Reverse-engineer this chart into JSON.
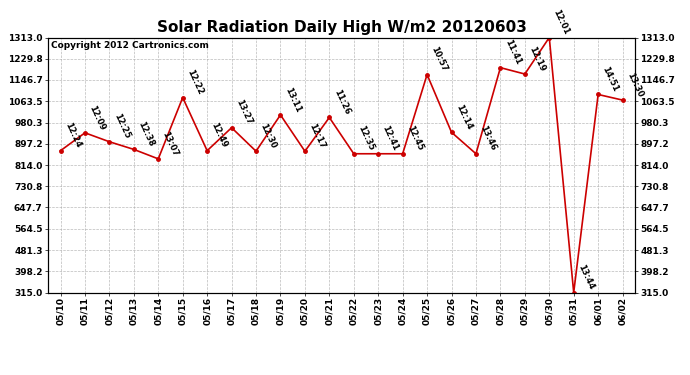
{
  "title": "Solar Radiation Daily High W/m2 20120603",
  "copyright": "Copyright 2012 Cartronics.com",
  "dates": [
    "05/10",
    "05/11",
    "05/12",
    "05/13",
    "05/14",
    "05/15",
    "05/16",
    "05/17",
    "05/18",
    "05/19",
    "05/20",
    "05/21",
    "05/22",
    "05/23",
    "05/24",
    "05/25",
    "05/26",
    "05/27",
    "05/28",
    "05/29",
    "05/30",
    "05/31",
    "06/01",
    "06/02"
  ],
  "values": [
    870,
    940,
    905,
    875,
    838,
    1078,
    870,
    960,
    868,
    1010,
    868,
    1000,
    858,
    858,
    858,
    1168,
    942,
    858,
    1195,
    1170,
    1313,
    315,
    1090,
    1068
  ],
  "times": [
    "12:24",
    "12:09",
    "12:25",
    "12:38",
    "13:07",
    "12:22",
    "12:49",
    "13:27",
    "12:30",
    "13:11",
    "12:17",
    "11:26",
    "12:35",
    "12:41",
    "12:45",
    "10:57",
    "12:14",
    "13:46",
    "11:41",
    "12:19",
    "12:01",
    "13:44",
    "14:51",
    "13:30"
  ],
  "line_color": "#cc0000",
  "marker_color": "#cc0000",
  "bg_color": "#ffffff",
  "grid_color": "#aaaaaa",
  "ymin": 315.0,
  "ymax": 1313.0,
  "yticks": [
    315.0,
    398.2,
    481.3,
    564.5,
    647.7,
    730.8,
    814.0,
    897.2,
    980.3,
    1063.5,
    1146.7,
    1229.8,
    1313.0
  ],
  "title_fontsize": 11,
  "label_fontsize": 6,
  "tick_fontsize": 6.5,
  "copyright_fontsize": 6.5
}
